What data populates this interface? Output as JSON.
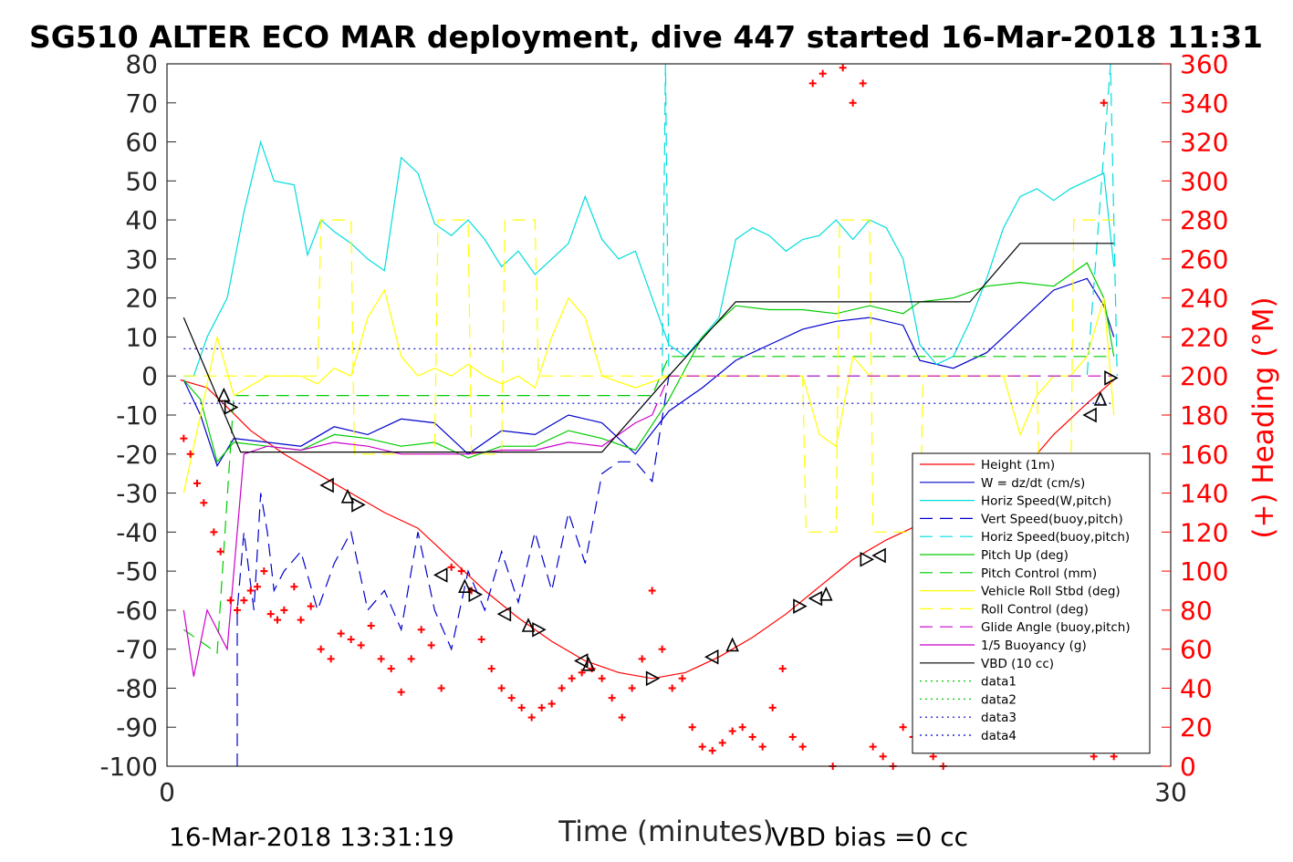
{
  "chart_data": {
    "type": "line",
    "title": "SG510 ALTER ECO MAR deployment, dive 447 started 16-Mar-2018 11:31",
    "xlabel": "Time (minutes)",
    "ylabel_right": "(+) Heading (°M)",
    "xlim": [
      0,
      30
    ],
    "ylim_left": [
      -100,
      80
    ],
    "ylim_right": [
      0,
      360
    ],
    "x_ticks": [
      "0",
      "30"
    ],
    "y_ticks_left": [
      "80",
      "70",
      "60",
      "50",
      "40",
      "30",
      "20",
      "10",
      "0",
      "-10",
      "-20",
      "-30",
      "-40",
      "-50",
      "-60",
      "-70",
      "-80",
      "-90",
      "-100"
    ],
    "y_ticks_right": [
      "360",
      "340",
      "320",
      "300",
      "280",
      "260",
      "240",
      "220",
      "200",
      "180",
      "160",
      "140",
      "120",
      "100",
      "80",
      "60",
      "40",
      "20",
      "0"
    ],
    "footer_left": "16-Mar-2018 13:31:19",
    "footer_right": "VBD bias =0 cc",
    "legend_position": "lower-right",
    "series": [
      {
        "name": "Height (1m)",
        "color": "#ff0000",
        "style": "solid",
        "x": [
          0.4,
          1.2,
          1.8,
          2.5,
          3.5,
          4.5,
          5.5,
          6.5,
          7.5,
          8.5,
          9.5,
          10.5,
          11.5,
          12.5,
          13.5,
          14.5,
          15.5,
          16.5,
          17.5,
          18.5,
          19.5,
          20.5,
          21.5,
          22.5,
          23.5,
          24.5,
          25.5,
          26.5,
          27.5,
          28.3
        ],
        "y": [
          -1,
          -3,
          -8,
          -14,
          -20,
          -25,
          -30,
          -35,
          -39,
          -47,
          -55,
          -62,
          -68,
          -73,
          -76,
          -77.5,
          -76,
          -72,
          -67,
          -61,
          -54,
          -47,
          -42,
          -38,
          -37,
          -33,
          -25,
          -15,
          -7,
          -1
        ]
      },
      {
        "name": "W = dz/dt (cm/s)",
        "color": "#0000cc",
        "style": "solid",
        "x": [
          0.5,
          1.0,
          1.5,
          2.0,
          3.0,
          4.0,
          5.0,
          6.0,
          7.0,
          8.0,
          9.0,
          10.0,
          11.0,
          12.0,
          13.0,
          14.0,
          15.0,
          16.0,
          17.0,
          18.0,
          19.0,
          20.0,
          21.0,
          22.0,
          22.5,
          23.5,
          24.5,
          25.5,
          26.5,
          27.5,
          28.0,
          28.3
        ],
        "y": [
          -1,
          -10,
          -23,
          -16,
          -17,
          -18,
          -13,
          -15,
          -11,
          -12,
          -20,
          -14,
          -15,
          -10,
          -12,
          -20,
          -9,
          -3,
          4,
          8,
          12,
          14,
          15,
          13,
          4,
          2,
          6,
          14,
          22,
          25,
          18,
          10
        ]
      },
      {
        "name": "Horiz Speed(W,pitch)",
        "color": "#00dddd",
        "style": "solid",
        "x": [
          0.5,
          0.8,
          1.2,
          1.8,
          2.3,
          2.8,
          3.2,
          3.8,
          4.2,
          4.6,
          5.0,
          5.5,
          6.0,
          6.5,
          7.0,
          7.5,
          8.0,
          8.5,
          9.0,
          9.5,
          10.0,
          10.5,
          11.0,
          11.5,
          12.0,
          12.5,
          13.0,
          13.5,
          14.0,
          14.5,
          15.0,
          15.5,
          16.0,
          16.5,
          17.0,
          17.5,
          18.0,
          18.5,
          19.0,
          19.5,
          20.0,
          20.5,
          21.0,
          21.5,
          22.0,
          22.5,
          23.0,
          23.5,
          24.0,
          24.5,
          25.0,
          25.5,
          26.0,
          26.5,
          27.0,
          27.5,
          28.0,
          28.3
        ],
        "y": [
          0,
          0,
          10,
          20,
          42,
          60,
          50,
          49,
          31,
          40,
          37,
          34,
          30,
          27,
          56,
          52,
          39,
          36,
          40,
          35,
          28,
          32,
          26,
          30,
          34,
          46,
          35,
          30,
          32,
          20,
          8,
          5,
          10,
          15,
          35,
          38,
          36,
          32,
          35,
          36,
          40,
          35,
          40,
          38,
          30,
          8,
          3,
          5,
          14,
          25,
          38,
          46,
          48,
          45,
          48,
          50,
          52,
          28
        ]
      },
      {
        "name": "Vert Speed(buoy,pitch)",
        "color": "#0000cc",
        "style": "dashed",
        "x": [
          2.1,
          2.1,
          2.3,
          2.6,
          2.8,
          3.0,
          3.2,
          3.5,
          4.0,
          4.5,
          5.0,
          5.5,
          6.0,
          6.5,
          7.0,
          7.5,
          8.0,
          8.5,
          9.0,
          9.5,
          10.0,
          10.5,
          11.0,
          11.5,
          12.0,
          12.5,
          13.0,
          13.5,
          14.0,
          14.5,
          15.0
        ],
        "y": [
          -100,
          -60,
          -40,
          -60,
          -30,
          -40,
          -55,
          -50,
          -45,
          -60,
          -48,
          -40,
          -60,
          -55,
          -65,
          -40,
          -60,
          -70,
          -50,
          -60,
          -45,
          -58,
          -40,
          -55,
          -35,
          -48,
          -25,
          -22,
          -22,
          -27,
          0
        ]
      },
      {
        "name": "Horiz Speed(buoy,pitch)",
        "color": "#00dddd",
        "style": "dashed",
        "x": [
          14.8,
          14.9,
          15.0,
          15.5,
          16.5,
          18.0,
          20.0,
          22.0,
          24.0,
          26.0,
          27.5,
          28.2,
          28.4
        ],
        "y": [
          0,
          80,
          0,
          0,
          0,
          0,
          0,
          0,
          0,
          0,
          0,
          80,
          0
        ]
      },
      {
        "name": "Pitch Up (deg)",
        "color": "#00cc00",
        "style": "solid",
        "x": [
          0.5,
          1.0,
          1.5,
          2.0,
          3.0,
          4.0,
          5.0,
          6.0,
          7.0,
          8.0,
          9.0,
          10.0,
          11.0,
          12.0,
          13.0,
          14.0,
          15.0,
          16.0,
          17.0,
          18.0,
          19.0,
          20.0,
          21.0,
          22.0,
          22.5,
          23.5,
          24.5,
          25.5,
          26.5,
          27.5,
          28.0,
          28.3
        ],
        "y": [
          -1,
          -6,
          -22,
          -17,
          -18,
          -19,
          -15,
          -16,
          -18,
          -17,
          -21,
          -18,
          -18,
          -14,
          -16,
          -19,
          -6,
          10,
          18,
          17,
          17,
          16,
          18,
          16,
          19,
          20,
          23,
          24,
          23,
          29,
          20,
          5
        ]
      },
      {
        "name": "Pitch Control (mm)",
        "color": "#00cc00",
        "style": "dashed",
        "x": [
          0.5,
          1.5,
          2.0,
          3.0,
          5.0,
          8.0,
          11.0,
          13.0,
          14.5,
          15.0,
          16.0,
          18.0,
          20.0,
          22.0,
          24.0,
          26.0,
          28.0,
          28.3
        ],
        "y": [
          -65,
          -71,
          -5,
          -5,
          -5,
          -5,
          -5,
          -5,
          -5,
          5,
          5,
          5,
          5,
          5,
          5,
          5,
          5,
          5
        ]
      },
      {
        "name": "Vehicle Roll Stbd (deg)",
        "color": "#ffff00",
        "style": "solid",
        "x": [
          0.5,
          1.0,
          1.5,
          2.0,
          3.0,
          4.0,
          4.5,
          5.0,
          5.5,
          6.0,
          6.5,
          7.0,
          7.5,
          8.0,
          8.5,
          9.0,
          9.5,
          10.0,
          10.5,
          11.0,
          11.5,
          12.0,
          12.5,
          13.0,
          14.0,
          15.0,
          16.0,
          17.0,
          18.0,
          19.0,
          19.5,
          20.0,
          20.5,
          21.0,
          21.5,
          22.0,
          22.5,
          23.0,
          24.0,
          25.0,
          25.5,
          26.0,
          26.5,
          27.0,
          27.5,
          28.0,
          28.3
        ],
        "y": [
          -30,
          -10,
          10,
          -5,
          0,
          0,
          -2,
          2,
          0,
          15,
          22,
          5,
          0,
          2,
          0,
          3,
          0,
          -2,
          0,
          -3,
          10,
          20,
          15,
          0,
          -3,
          0,
          0,
          0,
          0,
          0,
          -15,
          -18,
          5,
          0,
          0,
          0,
          0,
          0,
          0,
          0,
          -15,
          -5,
          0,
          0,
          5,
          20,
          -10
        ]
      },
      {
        "name": "Roll Control (deg)",
        "color": "#ffff00",
        "style": "dashed",
        "x": [
          0.5,
          4.5,
          4.6,
          5.5,
          5.6,
          8.0,
          8.1,
          9.0,
          9.1,
          10.0,
          10.1,
          11.0,
          11.1,
          19.0,
          19.1,
          20.0,
          20.1,
          21.0,
          21.1,
          22.5,
          22.6,
          26.0,
          26.1,
          27.0,
          27.1,
          28.3
        ],
        "y": [
          0,
          0,
          40,
          40,
          -20,
          -20,
          40,
          40,
          -20,
          -20,
          40,
          40,
          0,
          0,
          -40,
          -40,
          40,
          40,
          -40,
          -40,
          0,
          0,
          -40,
          -40,
          40,
          40
        ]
      },
      {
        "name": "Glide Angle (buoy,pitch)",
        "color": "#cc00cc",
        "style": "dashed",
        "x": [
          14.5,
          15.0,
          16.0,
          18.0,
          20.0,
          22.0,
          24.0,
          26.0,
          28.3
        ],
        "y": [
          -10,
          0,
          0,
          0,
          0,
          0,
          0,
          0,
          0
        ]
      },
      {
        "name": "1/5 Buoyancy (g)",
        "color": "#cc00cc",
        "style": "solid",
        "x": [
          0.5,
          0.8,
          1.2,
          1.8,
          2.3,
          3.0,
          4.0,
          5.0,
          6.0,
          7.0,
          8.0,
          9.0,
          10.0,
          11.0,
          12.0,
          13.0,
          14.0,
          14.5
        ],
        "y": [
          -60,
          -77,
          -60,
          -70,
          -20,
          -18,
          -19,
          -17,
          -18,
          -20,
          -20,
          -20,
          -19,
          -19,
          -17,
          -18,
          -12,
          -10
        ]
      },
      {
        "name": "VBD (10 cc)",
        "color": "#000000",
        "style": "solid",
        "x": [
          0.5,
          2.2,
          5.0,
          10.0,
          13.0,
          15.0,
          17.0,
          20.0,
          22.0,
          24.0,
          25.5,
          28.3
        ],
        "y": [
          15,
          -19.5,
          -19.5,
          -19.5,
          -19.5,
          0,
          19,
          19,
          19,
          19,
          34,
          34
        ]
      },
      {
        "name": "data1",
        "color": "#00cc00",
        "style": "dotted",
        "x": [],
        "y": []
      },
      {
        "name": "data2",
        "color": "#00cc00",
        "style": "dotted",
        "x": [],
        "y": []
      },
      {
        "name": "data3",
        "color": "#0000cc",
        "style": "dotted",
        "x": [
          0.5,
          28.3
        ],
        "y": [
          7,
          7
        ]
      },
      {
        "name": "data4",
        "color": "#0000cc",
        "style": "dotted",
        "x": [
          0.5,
          28.3
        ],
        "y": [
          -7,
          -7
        ]
      }
    ],
    "heading_markers": {
      "color": "#ff0000",
      "axis": "right",
      "x": [
        0.5,
        0.7,
        0.9,
        1.1,
        1.4,
        1.6,
        1.9,
        2.1,
        2.3,
        2.5,
        2.7,
        2.9,
        3.1,
        3.3,
        3.5,
        3.8,
        4.0,
        4.3,
        4.6,
        4.9,
        5.2,
        5.5,
        5.8,
        6.1,
        6.4,
        6.7,
        7.0,
        7.3,
        7.6,
        7.9,
        8.2,
        8.5,
        8.8,
        9.1,
        9.4,
        9.7,
        10.0,
        10.3,
        10.6,
        10.9,
        11.2,
        11.5,
        11.8,
        12.1,
        12.4,
        12.7,
        13.0,
        13.3,
        13.6,
        13.9,
        14.2,
        14.5,
        14.8,
        15.1,
        15.4,
        15.7,
        16.0,
        16.3,
        16.6,
        16.9,
        17.2,
        17.5,
        17.8,
        18.1,
        18.4,
        18.7,
        19.0,
        19.3,
        19.6,
        19.9,
        20.2,
        20.5,
        20.8,
        21.1,
        21.4,
        21.7,
        22.0,
        22.3,
        22.6,
        22.9,
        23.2,
        23.5,
        23.8,
        24.1,
        24.4,
        24.7,
        25.0,
        25.3,
        25.6,
        25.9,
        26.2,
        26.5,
        26.8,
        27.1,
        27.4,
        27.7,
        28.0,
        28.3
      ],
      "y": [
        168,
        160,
        145,
        135,
        120,
        110,
        85,
        80,
        85,
        90,
        92,
        100,
        78,
        75,
        80,
        92,
        75,
        82,
        60,
        55,
        68,
        65,
        62,
        72,
        55,
        50,
        38,
        55,
        70,
        62,
        40,
        102,
        100,
        90,
        65,
        50,
        40,
        35,
        30,
        25,
        30,
        32,
        40,
        45,
        48,
        50,
        45,
        35,
        25,
        40,
        55,
        90,
        60,
        40,
        45,
        20,
        10,
        8,
        12,
        18,
        20,
        15,
        10,
        30,
        50,
        15,
        10,
        350,
        355,
        0,
        358,
        340,
        350,
        10,
        5,
        0,
        20,
        15,
        10,
        5,
        0,
        15,
        60,
        50,
        45,
        40,
        35,
        80,
        90,
        60,
        65,
        15,
        12,
        25,
        10,
        5,
        340,
        5
      ]
    },
    "triangle_markers": {
      "color": "#000000",
      "axis": "left",
      "x": [
        1.7,
        1.9,
        4.8,
        5.4,
        5.7,
        8.2,
        8.9,
        9.2,
        10.1,
        10.8,
        11.1,
        12.4,
        12.6,
        14.5,
        16.3,
        16.9,
        18.9,
        19.4,
        19.7,
        20.9,
        21.3,
        22.5,
        22.8,
        24.4,
        25.4,
        26.1,
        27.6,
        27.9,
        28.2
      ],
      "y": [
        -5,
        -8,
        -28,
        -31,
        -33,
        -51,
        -54,
        -56,
        -61,
        -64,
        -65,
        -73,
        -74,
        -77.5,
        -72,
        -69,
        -59,
        -57,
        -56,
        -47,
        -46,
        -39,
        -38,
        -37,
        -30,
        -25,
        -10,
        -6,
        -0.5
      ]
    }
  }
}
